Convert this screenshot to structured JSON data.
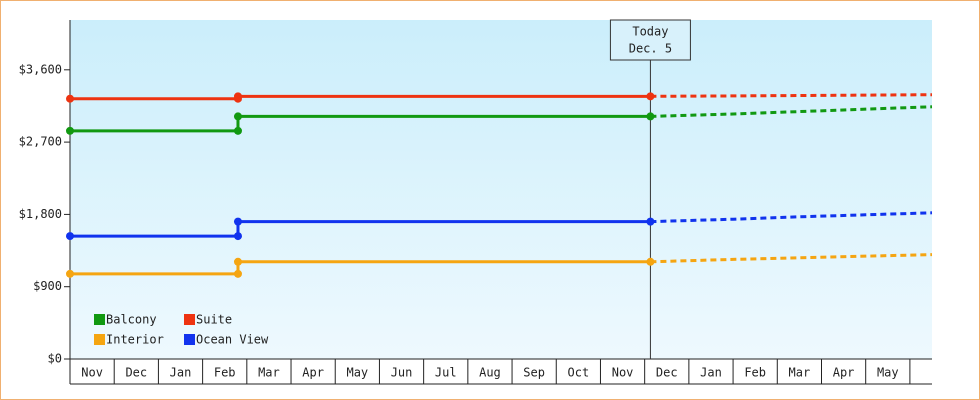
{
  "chart_data": {
    "type": "line",
    "categories": [
      "Nov",
      "Dec",
      "Jan",
      "Feb",
      "Mar",
      "Apr",
      "May",
      "Jun",
      "Jul",
      "Aug",
      "Sep",
      "Oct",
      "Nov",
      "Dec",
      "Jan",
      "Feb",
      "Mar",
      "Apr",
      "May"
    ],
    "x": [
      0,
      3.8,
      3.8,
      13.13
    ],
    "forecast_x": [
      13.13,
      15,
      16.5,
      18,
      19.5
    ],
    "xlim": [
      0,
      19.5
    ],
    "ylim": [
      0,
      4220
    ],
    "yticks": [
      {
        "value": 0,
        "label": "$0"
      },
      {
        "value": 900,
        "label": "$900"
      },
      {
        "value": 1800,
        "label": "$1,800"
      },
      {
        "value": 2700,
        "label": "$2,700"
      },
      {
        "value": 3600,
        "label": "$3,600"
      }
    ],
    "series": [
      {
        "name": "Balcony",
        "color": "#119911",
        "values": [
          2840,
          2840,
          3020,
          3020
        ],
        "forecast_values": [
          3020,
          3050,
          3080,
          3110,
          3140
        ]
      },
      {
        "name": "Suite",
        "color": "#ee3311",
        "values": [
          3240,
          3240,
          3270,
          3270
        ],
        "forecast_values": [
          3270,
          3275,
          3280,
          3285,
          3290
        ]
      },
      {
        "name": "Interior",
        "color": "#f5a511",
        "values": [
          1060,
          1060,
          1210,
          1210
        ],
        "forecast_values": [
          1210,
          1240,
          1260,
          1280,
          1300
        ]
      },
      {
        "name": "Ocean View",
        "color": "#1133ee",
        "values": [
          1530,
          1530,
          1710,
          1710
        ],
        "forecast_values": [
          1710,
          1740,
          1770,
          1795,
          1820
        ]
      }
    ],
    "annotation": {
      "lines": [
        "Today",
        "Dec. 5"
      ],
      "x": 13.13
    }
  }
}
